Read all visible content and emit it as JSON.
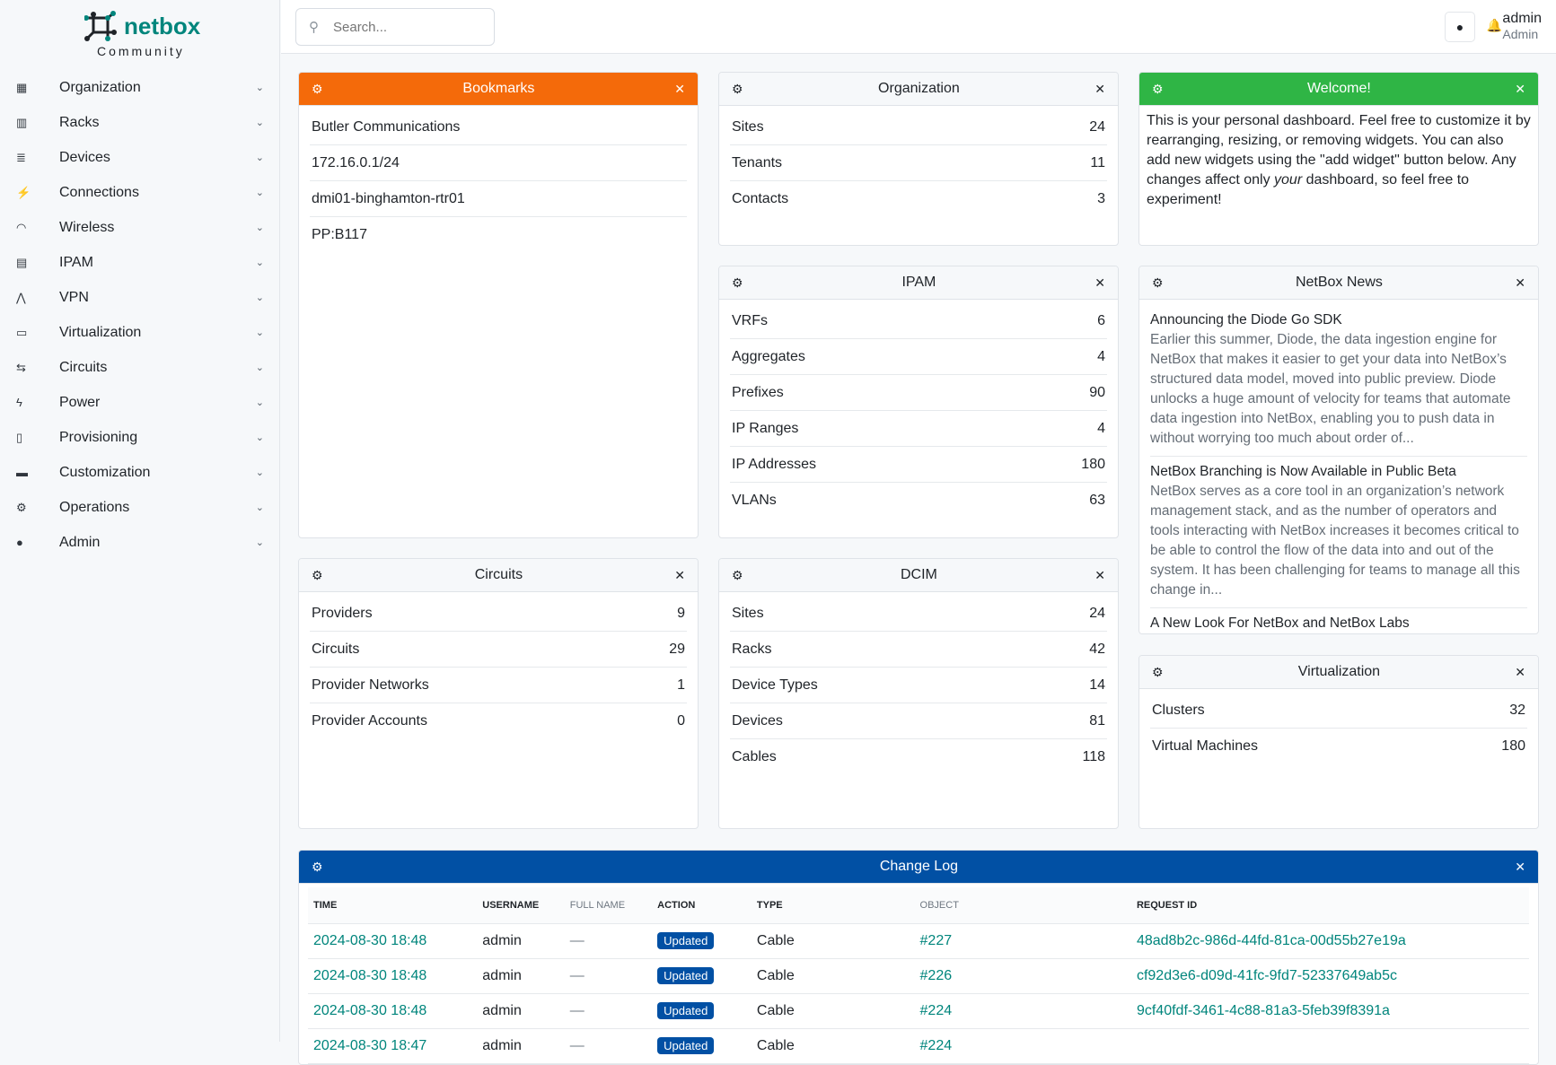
{
  "brand": {
    "name": "netbox",
    "edition": "Community"
  },
  "sidebar": {
    "items": [
      {
        "label": "Organization",
        "icon": "building-icon"
      },
      {
        "label": "Racks",
        "icon": "rack-icon"
      },
      {
        "label": "Devices",
        "icon": "server-icon"
      },
      {
        "label": "Connections",
        "icon": "plug-icon"
      },
      {
        "label": "Wireless",
        "icon": "wifi-icon"
      },
      {
        "label": "IPAM",
        "icon": "counter-icon"
      },
      {
        "label": "VPN",
        "icon": "tunnel-icon"
      },
      {
        "label": "Virtualization",
        "icon": "monitor-icon"
      },
      {
        "label": "Circuits",
        "icon": "transit-icon"
      },
      {
        "label": "Power",
        "icon": "flash-icon"
      },
      {
        "label": "Provisioning",
        "icon": "file-icon"
      },
      {
        "label": "Customization",
        "icon": "toolbox-icon"
      },
      {
        "label": "Operations",
        "icon": "cogs-icon"
      },
      {
        "label": "Admin",
        "icon": "users-icon"
      }
    ]
  },
  "topbar": {
    "search_placeholder": "Search...",
    "user": "admin",
    "role": "Admin"
  },
  "bookmarks": {
    "title": "Bookmarks",
    "items": [
      "Butler Communications",
      "172.16.0.1/24",
      "dmi01-binghamton-rtr01",
      "PP:B117"
    ]
  },
  "organization": {
    "title": "Organization",
    "rows": [
      [
        "Sites",
        "24"
      ],
      [
        "Tenants",
        "11"
      ],
      [
        "Contacts",
        "3"
      ]
    ]
  },
  "welcome": {
    "title": "Welcome!",
    "text1": "This is your personal dashboard. Feel free to customize it by rearranging, resizing, or removing widgets. You can also add new widgets using the \"add widget\" button below. Any changes affect only ",
    "em": "your",
    "text2": " dashboard, so feel free to experiment!"
  },
  "ipam": {
    "title": "IPAM",
    "rows": [
      [
        "VRFs",
        "6"
      ],
      [
        "Aggregates",
        "4"
      ],
      [
        "Prefixes",
        "90"
      ],
      [
        "IP Ranges",
        "4"
      ],
      [
        "IP Addresses",
        "180"
      ],
      [
        "VLANs",
        "63"
      ]
    ]
  },
  "news": {
    "title": "NetBox News",
    "items": [
      {
        "title": "Announcing the Diode Go SDK",
        "excerpt": "Earlier this summer, Diode, the data ingestion engine for NetBox that makes it easier to get your data into NetBox’s structured data model, moved into public preview. Diode unlocks a huge amount of velocity for teams that automate data ingestion into NetBox, enabling you to push data in without worrying too much about order of..."
      },
      {
        "title": "NetBox Branching is Now Available in Public Beta",
        "excerpt": "NetBox serves as a core tool in an organization’s network management stack, and as the number of operators and tools interacting with NetBox increases it becomes critical to be able to control the flow of the data into and out of the system. It has been challenging for teams to manage all this change in..."
      },
      {
        "title": "A New Look For NetBox and NetBox Labs",
        "excerpt": ""
      }
    ]
  },
  "circuits": {
    "title": "Circuits",
    "rows": [
      [
        "Providers",
        "9"
      ],
      [
        "Circuits",
        "29"
      ],
      [
        "Provider Networks",
        "1"
      ],
      [
        "Provider Accounts",
        "0"
      ]
    ]
  },
  "dcim": {
    "title": "DCIM",
    "rows": [
      [
        "Sites",
        "24"
      ],
      [
        "Racks",
        "42"
      ],
      [
        "Device Types",
        "14"
      ],
      [
        "Devices",
        "81"
      ],
      [
        "Cables",
        "118"
      ]
    ]
  },
  "virtualization": {
    "title": "Virtualization",
    "rows": [
      [
        "Clusters",
        "32"
      ],
      [
        "Virtual Machines",
        "180"
      ]
    ]
  },
  "changelog": {
    "title": "Change Log",
    "columns": [
      "TIME",
      "USERNAME",
      "FULL NAME",
      "ACTION",
      "TYPE",
      "OBJECT",
      "REQUEST ID"
    ],
    "rows": [
      [
        "2024-08-30 18:48",
        "admin",
        "—",
        "Updated",
        "Cable",
        "#227",
        "48ad8b2c-986d-44fd-81ca-00d55b27e19a"
      ],
      [
        "2024-08-30 18:48",
        "admin",
        "—",
        "Updated",
        "Cable",
        "#226",
        "cf92d3e6-d09d-41fc-9fd7-52337649ab5c"
      ],
      [
        "2024-08-30 18:48",
        "admin",
        "—",
        "Updated",
        "Cable",
        "#224",
        "9cf40fdf-3461-4c88-81a3-5feb39f8391a"
      ],
      [
        "2024-08-30 18:47",
        "admin",
        "—",
        "Updated",
        "Cable",
        "#224",
        ""
      ]
    ]
  },
  "colors": {
    "accent": "#00857c",
    "bookmarks": "#f46a0a",
    "welcome": "#2fb545",
    "changelog": "#0150a4"
  }
}
